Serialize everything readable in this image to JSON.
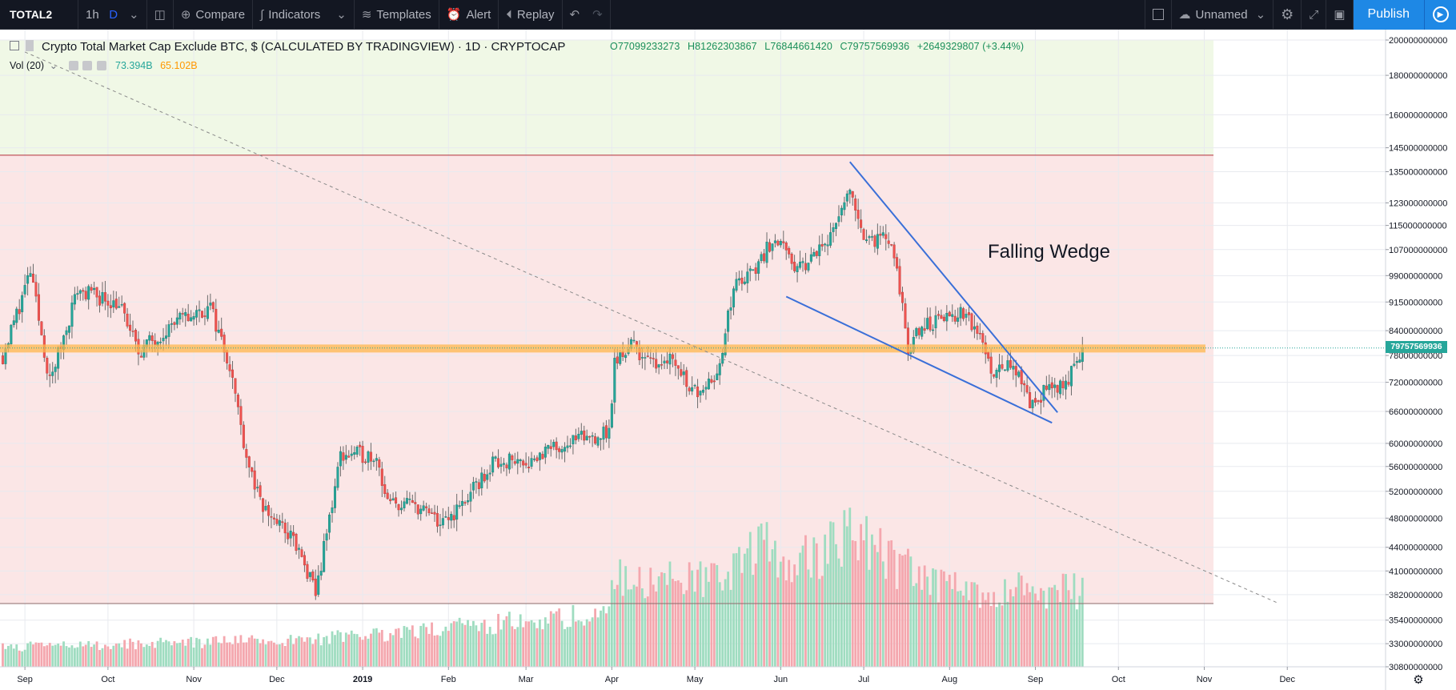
{
  "toolbar": {
    "symbol": "TOTAL2",
    "interval_1": "1h",
    "interval_2": "D",
    "compare": "Compare",
    "indicators": "Indicators",
    "templates": "Templates",
    "alert": "Alert",
    "replay": "Replay",
    "layout_name": "Unnamed",
    "publish": "Publish"
  },
  "legend": {
    "title": "Crypto Total Market Cap Exclude BTC, $ (CALCULATED BY TRADINGVIEW) · 1D · CRYPTOCAP",
    "open": "O77099233273",
    "high": "H81262303867",
    "low": "L76844661420",
    "close": "C79757569936",
    "change": "+2649329807 (+3.44%)",
    "volume_label": "Vol (20)",
    "volume_value": "73.394B",
    "volume_ma": "65.102B"
  },
  "annotation": "Falling Wedge",
  "last_price_label": "79757569936",
  "colors": {
    "up": "#26a69a",
    "down": "#ef5350",
    "up_volume": "#9fdcc0",
    "down_volume": "#f4a7ae",
    "green_zone": "#f0f8e6",
    "red_zone": "#fbe6e6",
    "orange_band": "#ffb74d",
    "wedge_lines": "#3a6fd8",
    "toolbar_bg": "#131722"
  },
  "chart_data": {
    "type": "candlestick",
    "title": "Crypto Total Market Cap Exclude BTC, $ (CALCULATED BY TRADINGVIEW) · 1D · CRYPTOCAP",
    "y_scale": "log",
    "ylim": [
      30800000000,
      200000000000
    ],
    "y_ticks": [
      200000000000,
      180000000000,
      160000000000,
      145000000000,
      135000000000,
      123000000000,
      115000000000,
      107000000000,
      99000000000,
      91500000000,
      84000000000,
      78000000000,
      72000000000,
      66000000000,
      60000000000,
      56000000000,
      52000000000,
      48000000000,
      44000000000,
      41000000000,
      38200000000,
      35400000000,
      33000000000,
      30800000000
    ],
    "x_ticks": [
      "Sep",
      "Oct",
      "Nov",
      "Dec",
      "2019",
      "Feb",
      "Mar",
      "Apr",
      "May",
      "Jun",
      "Jul",
      "Aug",
      "Sep",
      "Oct",
      "Nov",
      "Dec"
    ],
    "x_tick_dates": [
      "2018-09-01",
      "2018-10-01",
      "2018-11-01",
      "2018-12-01",
      "2019-01-01",
      "2019-02-01",
      "2019-03-01",
      "2019-04-01",
      "2019-05-01",
      "2019-06-01",
      "2019-07-01",
      "2019-08-01",
      "2019-09-01",
      "2019-10-01",
      "2019-11-01",
      "2019-12-01"
    ],
    "x_range": [
      "2018-08-23",
      "2019-12-31"
    ],
    "close_path": [
      [
        "2018-08-24",
        78000000000
      ],
      [
        "2018-09-03",
        100000000000
      ],
      [
        "2018-09-10",
        72000000000
      ],
      [
        "2018-09-20",
        95000000000
      ],
      [
        "2018-10-05",
        91000000000
      ],
      [
        "2018-10-12",
        79000000000
      ],
      [
        "2018-10-25",
        86000000000
      ],
      [
        "2018-11-07",
        90000000000
      ],
      [
        "2018-11-14",
        76000000000
      ],
      [
        "2018-11-20",
        58000000000
      ],
      [
        "2018-11-25",
        50000000000
      ],
      [
        "2018-12-07",
        45000000000
      ],
      [
        "2018-12-15",
        38300000000
      ],
      [
        "2018-12-20",
        48000000000
      ],
      [
        "2018-12-24",
        58000000000
      ],
      [
        "2019-01-06",
        58000000000
      ],
      [
        "2019-01-10",
        50000000000
      ],
      [
        "2019-01-20",
        50000000000
      ],
      [
        "2019-01-30",
        47000000000
      ],
      [
        "2019-02-08",
        51000000000
      ],
      [
        "2019-02-18",
        57000000000
      ],
      [
        "2019-03-02",
        57000000000
      ],
      [
        "2019-03-15",
        60000000000
      ],
      [
        "2019-03-31",
        62000000000
      ],
      [
        "2019-04-02",
        76000000000
      ],
      [
        "2019-04-08",
        81000000000
      ],
      [
        "2019-04-15",
        76000000000
      ],
      [
        "2019-04-22",
        78000000000
      ],
      [
        "2019-05-01",
        70000000000
      ],
      [
        "2019-05-10",
        75000000000
      ],
      [
        "2019-05-15",
        96000000000
      ],
      [
        "2019-05-22",
        100000000000
      ],
      [
        "2019-05-30",
        112000000000
      ],
      [
        "2019-06-06",
        100000000000
      ],
      [
        "2019-06-15",
        107000000000
      ],
      [
        "2019-06-22",
        117000000000
      ],
      [
        "2019-06-26",
        127000000000
      ],
      [
        "2019-07-02",
        110000000000
      ],
      [
        "2019-07-10",
        110000000000
      ],
      [
        "2019-07-15",
        92000000000
      ],
      [
        "2019-07-17",
        79000000000
      ],
      [
        "2019-07-22",
        85000000000
      ],
      [
        "2019-07-30",
        87000000000
      ],
      [
        "2019-08-06",
        88000000000
      ],
      [
        "2019-08-12",
        83000000000
      ],
      [
        "2019-08-16",
        75000000000
      ],
      [
        "2019-08-23",
        76000000000
      ],
      [
        "2019-08-30",
        68000000000
      ],
      [
        "2019-09-05",
        70000000000
      ],
      [
        "2019-09-10",
        71000000000
      ],
      [
        "2019-09-14",
        74000000000
      ],
      [
        "2019-09-18",
        79757569936
      ]
    ],
    "volume_ylim": [
      0,
      1
    ],
    "volume_path": [
      [
        "2018-08-24",
        0.13
      ],
      [
        "2018-12-15",
        0.18
      ],
      [
        "2019-03-01",
        0.3
      ],
      [
        "2019-03-31",
        0.36
      ],
      [
        "2019-04-02",
        0.58
      ],
      [
        "2019-05-13",
        0.55
      ],
      [
        "2019-05-20",
        0.8
      ],
      [
        "2019-06-10",
        0.7
      ],
      [
        "2019-06-26",
        0.9
      ],
      [
        "2019-07-10",
        0.7
      ],
      [
        "2019-08-01",
        0.5
      ],
      [
        "2019-09-18",
        0.49
      ]
    ],
    "levels": [
      {
        "name": "resistance",
        "value": 141800000000
      },
      {
        "name": "orange-band",
        "low": 78700000000,
        "high": 80600000000
      },
      {
        "name": "support",
        "value": 37200000000
      }
    ],
    "zones": [
      {
        "name": "green-zone",
        "low": 141800000000,
        "high": 200000000000
      },
      {
        "name": "red-zone",
        "low": 37200000000,
        "high": 141800000000
      }
    ],
    "trendlines": [
      {
        "name": "diagonal-dashed-line",
        "from": [
          "2018-09-01",
          193000000000
        ],
        "to": [
          "2019-11-28",
          37200000000
        ]
      },
      {
        "name": "wedge-upper-line",
        "from": [
          "2019-06-26",
          139000000000
        ],
        "to": [
          "2019-09-09",
          65800000000
        ]
      },
      {
        "name": "wedge-lower-line",
        "from": [
          "2019-06-03",
          93000000000
        ],
        "to": [
          "2019-09-07",
          63800000000
        ]
      }
    ],
    "last_price": 79757569936
  }
}
